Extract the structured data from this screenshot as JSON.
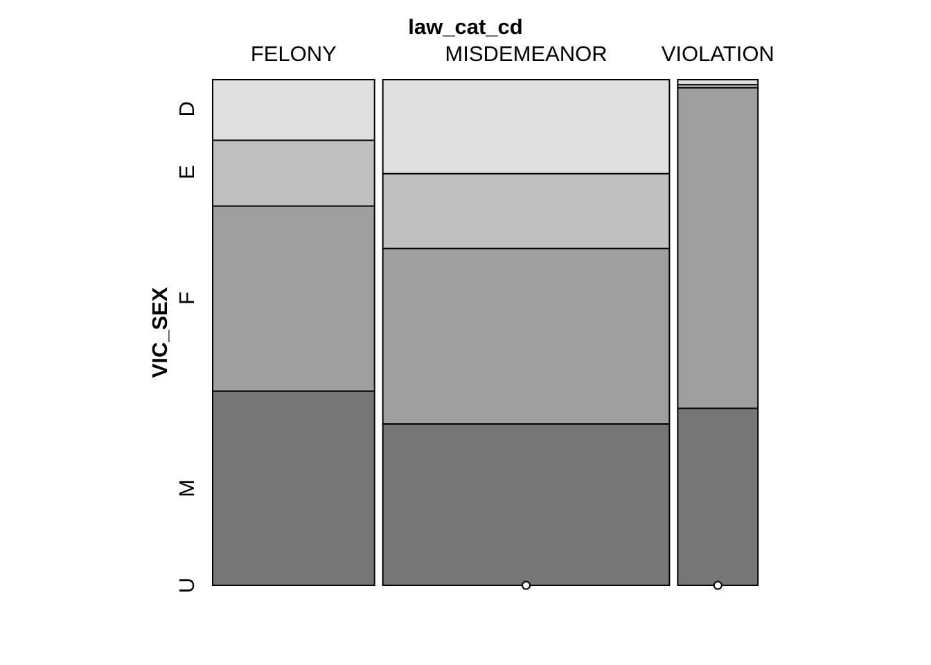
{
  "chart_data": {
    "type": "mosaic",
    "xlabel": "law_cat_cd",
    "ylabel": "VIC_SEX",
    "categories": [
      "FELONY",
      "MISDEMEANOR",
      "VIOLATION"
    ],
    "column_widths": [
      0.331,
      0.586,
      0.164
    ],
    "levels": [
      "D",
      "E",
      "F",
      "M",
      "U"
    ],
    "level_colors": [
      "#e0e0e0",
      "#c0c0c0",
      "#9f9f9f",
      "#767676",
      "#767676"
    ],
    "level_label_fractions": [
      0.942,
      0.817,
      0.568,
      0.192,
      0.0
    ],
    "proportions": [
      {
        "category": "FELONY",
        "values": [
          0.12,
          0.13,
          0.366,
          0.384,
          0.0
        ]
      },
      {
        "category": "MISDEMEANOR",
        "values": [
          0.186,
          0.148,
          0.347,
          0.319,
          0.0
        ]
      },
      {
        "category": "VIOLATION",
        "values": [
          0.01,
          0.006,
          0.634,
          0.35,
          0.0
        ]
      }
    ],
    "zero_cells": [
      {
        "category": "MISDEMEANOR",
        "level": "U"
      },
      {
        "category": "VIOLATION",
        "level": "U"
      }
    ]
  }
}
